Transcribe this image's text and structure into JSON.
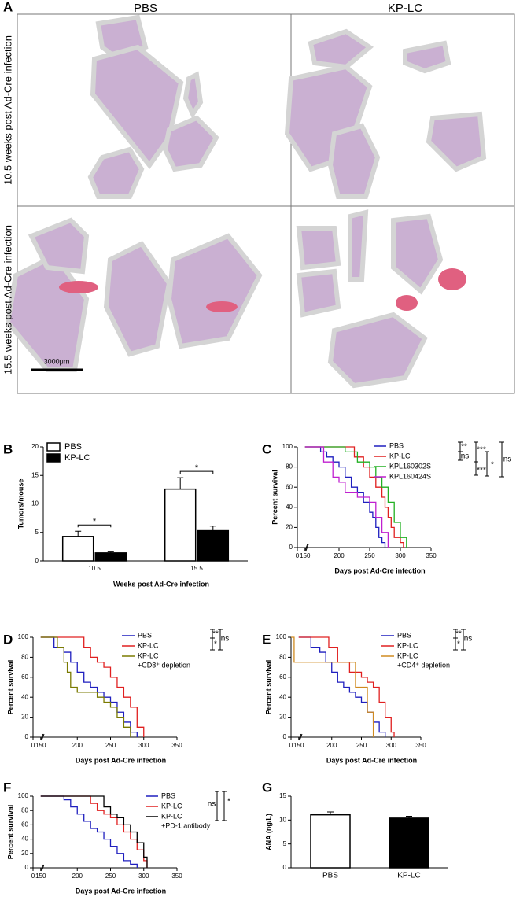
{
  "panel_a": {
    "label": "A",
    "columns": [
      "PBS",
      "KP-LC"
    ],
    "rows": [
      "10.5 weeks post Ad-Cre infection",
      "15.5 weeks post Ad-Cre infection"
    ],
    "scale_bar": "3000μm"
  },
  "chart_data": [
    {
      "panel": "B",
      "type": "bar",
      "categories": [
        "10.5",
        "15.5"
      ],
      "series": [
        {
          "name": "PBS",
          "color": "#ffffff",
          "values": [
            4.3,
            12.6
          ],
          "errors": [
            0.9,
            2.0
          ]
        },
        {
          "name": "KP-LC",
          "color": "#000000",
          "values": [
            1.4,
            5.3
          ],
          "errors": [
            0.3,
            0.8
          ]
        }
      ],
      "ylim": [
        0,
        20
      ],
      "yticks": [
        0,
        5,
        10,
        15,
        20
      ],
      "y_label": "Tumors/mouse",
      "x_label": "Weeks post Ad-Cre infection",
      "annotations": [
        "*",
        "*"
      ]
    },
    {
      "panel": "C",
      "type": "line",
      "step": true,
      "x_label": "Days post Ad-Cre infection",
      "y_label": "Percent survival",
      "xlim": [
        0,
        350
      ],
      "xticks": [
        0,
        150,
        200,
        250,
        300,
        350
      ],
      "xbreak": true,
      "ylim": [
        0,
        100
      ],
      "yticks": [
        0,
        20,
        40,
        60,
        80,
        100
      ],
      "series": [
        {
          "name": "PBS",
          "color": "#1f1fbf",
          "x": [
            150,
            170,
            180,
            190,
            200,
            210,
            220,
            230,
            240,
            250,
            255,
            260,
            265,
            270,
            275
          ],
          "values": [
            100,
            95,
            90,
            85,
            80,
            70,
            60,
            55,
            45,
            35,
            30,
            20,
            10,
            5,
            0
          ]
        },
        {
          "name": "KP-LC",
          "color": "#e02020",
          "x": [
            150,
            225,
            240,
            250,
            260,
            270,
            275,
            280,
            285,
            290,
            300,
            305
          ],
          "values": [
            100,
            90,
            80,
            70,
            60,
            50,
            40,
            30,
            20,
            10,
            5,
            0
          ]
        },
        {
          "name": "KPL160302S",
          "color": "#22b022",
          "x": [
            150,
            210,
            230,
            250,
            260,
            270,
            280,
            290,
            300,
            310
          ],
          "values": [
            100,
            95,
            85,
            80,
            70,
            60,
            45,
            25,
            10,
            0
          ]
        },
        {
          "name": "KPL160424S",
          "color": "#c020d0",
          "x": [
            150,
            175,
            190,
            200,
            210,
            230,
            250,
            260,
            270,
            280
          ],
          "values": [
            100,
            85,
            70,
            65,
            55,
            50,
            45,
            30,
            15,
            0
          ]
        }
      ],
      "annotations": [
        "**",
        "ns",
        "***",
        "***",
        "*",
        "ns"
      ]
    },
    {
      "panel": "D",
      "type": "line",
      "step": true,
      "x_label": "Days post Ad-Cre infection",
      "y_label": "Percent survival",
      "xlim": [
        0,
        350
      ],
      "xticks": [
        0,
        150,
        200,
        250,
        300,
        350
      ],
      "xbreak": true,
      "ylim": [
        0,
        100
      ],
      "yticks": [
        0,
        20,
        40,
        60,
        80,
        100
      ],
      "series": [
        {
          "name": "PBS",
          "color": "#1f1fbf",
          "x": [
            150,
            165,
            180,
            190,
            200,
            210,
            220,
            230,
            240,
            250,
            260,
            270,
            280,
            290
          ],
          "values": [
            100,
            90,
            85,
            75,
            65,
            55,
            50,
            45,
            40,
            35,
            25,
            15,
            5,
            0
          ]
        },
        {
          "name": "KP-LC",
          "color": "#e02020",
          "x": [
            150,
            210,
            220,
            230,
            240,
            250,
            260,
            270,
            280,
            290,
            300
          ],
          "values": [
            100,
            90,
            80,
            75,
            70,
            60,
            50,
            40,
            30,
            10,
            0
          ]
        },
        {
          "name": "KP-LC",
          "note": "+CD8⁺ depletion",
          "color": "#7a7a00",
          "x": [
            150,
            170,
            180,
            185,
            190,
            200,
            230,
            240,
            250,
            260,
            270,
            280
          ],
          "values": [
            100,
            90,
            75,
            65,
            50,
            45,
            40,
            35,
            30,
            20,
            10,
            0
          ]
        }
      ],
      "annotations": [
        "**",
        "*",
        "ns"
      ]
    },
    {
      "panel": "E",
      "type": "line",
      "step": true,
      "x_label": "Days post Ad-Cre infection",
      "y_label": "Percent survival",
      "xlim": [
        0,
        350
      ],
      "xticks": [
        0,
        150,
        200,
        250,
        300,
        350
      ],
      "xbreak": true,
      "ylim": [
        0,
        100
      ],
      "yticks": [
        0,
        20,
        40,
        60,
        80,
        100
      ],
      "series": [
        {
          "name": "PBS",
          "color": "#1f1fbf",
          "x": [
            150,
            165,
            180,
            190,
            200,
            210,
            220,
            230,
            240,
            250,
            260,
            270,
            280,
            290
          ],
          "values": [
            100,
            90,
            85,
            75,
            65,
            55,
            50,
            45,
            40,
            35,
            25,
            15,
            5,
            0
          ]
        },
        {
          "name": "KP-LC",
          "color": "#e02020",
          "x": [
            150,
            195,
            210,
            230,
            250,
            260,
            270,
            280,
            290,
            300,
            305
          ],
          "values": [
            100,
            90,
            75,
            65,
            60,
            55,
            50,
            35,
            20,
            5,
            0
          ]
        },
        {
          "name": "KP-LC",
          "note": "+CD4⁺ depletion",
          "color": "#d08a20",
          "x": [
            0,
            60,
            240,
            250,
            260,
            270
          ],
          "values": [
            100,
            75,
            50,
            50,
            25,
            0
          ]
        }
      ],
      "annotations": [
        "**",
        "*",
        "ns"
      ]
    },
    {
      "panel": "F",
      "type": "line",
      "step": true,
      "x_label": "Days post Ad-Cre infection",
      "y_label": "Percent survival",
      "xlim": [
        0,
        350
      ],
      "xticks": [
        0,
        150,
        200,
        250,
        300,
        350
      ],
      "xbreak": true,
      "ylim": [
        0,
        100
      ],
      "yticks": [
        0,
        20,
        40,
        60,
        80,
        100
      ],
      "series": [
        {
          "name": "PBS",
          "color": "#1f1fbf",
          "x": [
            150,
            180,
            190,
            200,
            210,
            220,
            230,
            240,
            250,
            260,
            270,
            280,
            290
          ],
          "values": [
            100,
            95,
            85,
            75,
            65,
            55,
            50,
            40,
            30,
            20,
            10,
            5,
            0
          ]
        },
        {
          "name": "KP-LC",
          "color": "#e02020",
          "x": [
            150,
            220,
            230,
            240,
            250,
            260,
            270,
            280,
            290,
            300,
            305
          ],
          "values": [
            100,
            90,
            80,
            75,
            70,
            60,
            50,
            40,
            25,
            10,
            0
          ]
        },
        {
          "name": "KP-LC",
          "note": "+PD-1 antibody",
          "color": "#000000",
          "x": [
            150,
            240,
            250,
            260,
            270,
            280,
            290,
            300,
            305
          ],
          "values": [
            100,
            85,
            75,
            70,
            60,
            50,
            35,
            15,
            0
          ]
        }
      ],
      "annotations": [
        "ns",
        "*"
      ]
    },
    {
      "panel": "G",
      "type": "bar",
      "categories": [
        "PBS",
        "KP-LC"
      ],
      "values": [
        11.1,
        10.4
      ],
      "errors": [
        0.6,
        0.4
      ],
      "colors": [
        "#ffffff",
        "#000000"
      ],
      "ylim": [
        0,
        15
      ],
      "yticks": [
        0,
        5,
        10,
        15
      ],
      "y_label": "ANA (ng/L)"
    }
  ]
}
